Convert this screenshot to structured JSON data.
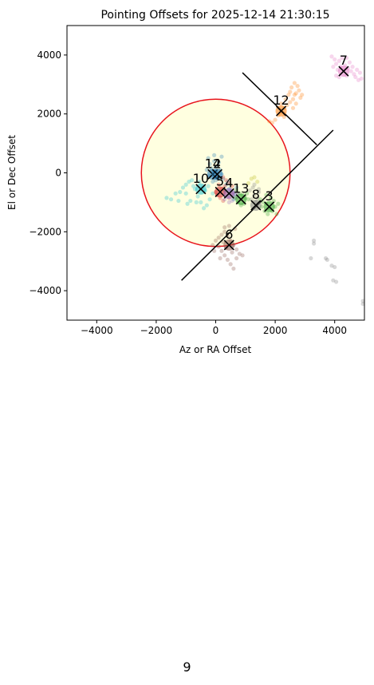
{
  "page": {
    "number": "9"
  },
  "chart_data": {
    "type": "scatter",
    "title": "Pointing Offsets for 2025-12-14 21:30:15",
    "xlabel": "Az or RA Offset",
    "ylabel": "El or Dec Offset",
    "xlim": [
      -5000,
      5000
    ],
    "ylim": [
      -5000,
      5000
    ],
    "xticks": [
      -4000,
      -2000,
      0,
      2000,
      4000
    ],
    "yticks": [
      -4000,
      -2000,
      0,
      2000,
      4000
    ],
    "xtick_labels": [
      "−4000",
      "−2000",
      "0",
      "2000",
      "4000"
    ],
    "ytick_labels": [
      "−4000",
      "−2000",
      "0",
      "2000",
      "4000"
    ],
    "grid": false,
    "circle": {
      "center": [
        0,
        0
      ],
      "radius": 2500,
      "edge_color": "#e8141c",
      "fill_color": "#ffffe0"
    },
    "lines": [
      {
        "from": [
          900,
          3400
        ],
        "to": [
          3400,
          950
        ]
      },
      {
        "from": [
          -1150,
          -3650
        ],
        "to": [
          3950,
          1450
        ]
      }
    ],
    "markers": [
      {
        "label": "7",
        "x": 4300,
        "y": 3450,
        "color": "#e377c2"
      },
      {
        "label": "12",
        "x": 2200,
        "y": 2100,
        "color": "#ff7f0e"
      },
      {
        "label": "14",
        "x": -100,
        "y": -50,
        "color": "#1f77b4"
      },
      {
        "label": "2",
        "x": 50,
        "y": -50,
        "color": "#1f77b4"
      },
      {
        "label": "10",
        "x": -500,
        "y": -550,
        "color": "#17becf"
      },
      {
        "label": "5",
        "x": 150,
        "y": -650,
        "color": "#d62728"
      },
      {
        "label": "4",
        "x": 450,
        "y": -700,
        "color": "#9467bd"
      },
      {
        "label": "13",
        "x": 850,
        "y": -900,
        "color": "#2ca02c"
      },
      {
        "label": "8",
        "x": 1350,
        "y": -1100,
        "color": "#7f7f7f"
      },
      {
        "label": "3",
        "x": 1800,
        "y": -1150,
        "color": "#2ca02c"
      },
      {
        "label": "6",
        "x": 450,
        "y": -2450,
        "color": "#8c564b"
      }
    ],
    "series": [
      {
        "color": "#e377c2",
        "points": [
          [
            3900,
            3950
          ],
          [
            4000,
            3850
          ],
          [
            4050,
            3700
          ],
          [
            4150,
            3800
          ],
          [
            4250,
            3900
          ],
          [
            4350,
            3650
          ],
          [
            4450,
            3550
          ],
          [
            4550,
            3450
          ],
          [
            4650,
            3350
          ],
          [
            4700,
            3250
          ],
          [
            4800,
            3150
          ],
          [
            4900,
            3200
          ],
          [
            4400,
            3300
          ],
          [
            4300,
            3500
          ],
          [
            4500,
            3750
          ],
          [
            4600,
            3600
          ],
          [
            4200,
            3600
          ],
          [
            4100,
            3500
          ],
          [
            3950,
            3600
          ],
          [
            4050,
            3300
          ],
          [
            4750,
            3500
          ],
          [
            4850,
            3400
          ],
          [
            4400,
            3900
          ],
          [
            4150,
            3250
          ]
        ]
      },
      {
        "color": "#ff7f0e",
        "points": [
          [
            1900,
            1700
          ],
          [
            2000,
            1800
          ],
          [
            2100,
            1950
          ],
          [
            2200,
            2050
          ],
          [
            2300,
            2200
          ],
          [
            2400,
            2300
          ],
          [
            2500,
            2400
          ],
          [
            2600,
            2500
          ],
          [
            2700,
            2700
          ],
          [
            2800,
            2800
          ],
          [
            2750,
            2950
          ],
          [
            2650,
            3050
          ],
          [
            2550,
            2900
          ],
          [
            2450,
            2650
          ],
          [
            2350,
            2500
          ],
          [
            2850,
            2550
          ],
          [
            2700,
            2350
          ],
          [
            2600,
            2200
          ],
          [
            2900,
            2650
          ],
          [
            2500,
            2750
          ],
          [
            2300,
            1900
          ],
          [
            1800,
            1750
          ],
          [
            2200,
            2350
          ],
          [
            2650,
            2650
          ]
        ]
      },
      {
        "color": "#1f77b4",
        "points": [
          [
            -250,
            500
          ],
          [
            -200,
            300
          ],
          [
            -150,
            150
          ],
          [
            -50,
            400
          ],
          [
            0,
            200
          ],
          [
            100,
            350
          ],
          [
            -100,
            50
          ],
          [
            50,
            0
          ],
          [
            150,
            100
          ],
          [
            -300,
            100
          ],
          [
            -200,
            -100
          ],
          [
            0,
            -250
          ],
          [
            100,
            -150
          ],
          [
            200,
            -50
          ],
          [
            -100,
            -300
          ],
          [
            250,
            -200
          ],
          [
            350,
            -400
          ],
          [
            450,
            -550
          ],
          [
            550,
            -650
          ],
          [
            650,
            -750
          ],
          [
            700,
            -500
          ],
          [
            400,
            -300
          ],
          [
            300,
            -600
          ],
          [
            600,
            -900
          ],
          [
            -50,
            600
          ],
          [
            200,
            550
          ]
        ]
      },
      {
        "color": "#17becf",
        "points": [
          [
            -1650,
            -850
          ],
          [
            -1500,
            -900
          ],
          [
            -1350,
            -700
          ],
          [
            -1200,
            -650
          ],
          [
            -1100,
            -500
          ],
          [
            -1000,
            -400
          ],
          [
            -900,
            -300
          ],
          [
            -800,
            -250
          ],
          [
            -700,
            -550
          ],
          [
            -600,
            -800
          ],
          [
            -500,
            -1000
          ],
          [
            -400,
            -1200
          ],
          [
            -300,
            -1100
          ],
          [
            -200,
            -900
          ],
          [
            -100,
            -700
          ],
          [
            -350,
            -600
          ],
          [
            -650,
            -1000
          ],
          [
            -850,
            -950
          ],
          [
            -1000,
            -700
          ],
          [
            -750,
            -450
          ],
          [
            -550,
            -300
          ],
          [
            -450,
            -500
          ],
          [
            -250,
            -450
          ],
          [
            -950,
            -1050
          ],
          [
            -1250,
            -950
          ]
        ]
      },
      {
        "color": "#d62728",
        "points": [
          [
            250,
            -150
          ],
          [
            350,
            -250
          ],
          [
            450,
            -350
          ],
          [
            550,
            -450
          ],
          [
            300,
            -450
          ],
          [
            200,
            -550
          ],
          [
            100,
            -400
          ],
          [
            50,
            -750
          ],
          [
            150,
            -850
          ],
          [
            350,
            -700
          ],
          [
            450,
            -850
          ],
          [
            250,
            -950
          ],
          [
            0,
            -650
          ],
          [
            550,
            -700
          ]
        ]
      },
      {
        "color": "#9467bd",
        "points": [
          [
            500,
            -600
          ],
          [
            600,
            -750
          ],
          [
            700,
            -850
          ],
          [
            400,
            -800
          ],
          [
            300,
            -900
          ],
          [
            550,
            -950
          ],
          [
            650,
            -650
          ],
          [
            750,
            -700
          ],
          [
            450,
            -1000
          ]
        ]
      },
      {
        "color": "#2ca02c",
        "points": [
          [
            700,
            -600
          ],
          [
            800,
            -700
          ],
          [
            900,
            -750
          ],
          [
            1000,
            -850
          ],
          [
            1100,
            -900
          ],
          [
            750,
            -1000
          ],
          [
            850,
            -1100
          ],
          [
            950,
            -1050
          ],
          [
            1050,
            -700
          ],
          [
            650,
            -850
          ],
          [
            1500,
            -900
          ],
          [
            1600,
            -1000
          ],
          [
            1700,
            -1050
          ],
          [
            1800,
            -1200
          ],
          [
            1900,
            -1300
          ],
          [
            2000,
            -1150
          ],
          [
            2100,
            -1050
          ],
          [
            1650,
            -1300
          ],
          [
            1750,
            -1400
          ],
          [
            1850,
            -850
          ],
          [
            1950,
            -950
          ],
          [
            1550,
            -1150
          ],
          [
            2050,
            -1400
          ],
          [
            1700,
            -750
          ]
        ]
      },
      {
        "color": "#7f7f7f",
        "points": [
          [
            1150,
            -600
          ],
          [
            1250,
            -500
          ],
          [
            1300,
            -750
          ],
          [
            1400,
            -850
          ],
          [
            1450,
            -650
          ],
          [
            1350,
            -1000
          ],
          [
            1200,
            -900
          ],
          [
            1450,
            -550
          ],
          [
            1300,
            -400
          ],
          [
            3300,
            -2300
          ],
          [
            3300,
            -2400
          ],
          [
            3700,
            -2900
          ],
          [
            3750,
            -2950
          ],
          [
            3900,
            -3150
          ],
          [
            4000,
            -3200
          ],
          [
            3950,
            -3650
          ],
          [
            4050,
            -3700
          ],
          [
            4950,
            -4350
          ],
          [
            4950,
            -4450
          ],
          [
            3200,
            -2900
          ]
        ]
      },
      {
        "color": "#8c564b",
        "points": [
          [
            0,
            -2300
          ],
          [
            100,
            -2200
          ],
          [
            200,
            -2100
          ],
          [
            300,
            -2000
          ],
          [
            400,
            -2150
          ],
          [
            500,
            -2300
          ],
          [
            600,
            -2450
          ],
          [
            700,
            -2600
          ],
          [
            800,
            -2750
          ],
          [
            900,
            -2800
          ],
          [
            100,
            -2500
          ],
          [
            200,
            -2650
          ],
          [
            300,
            -2800
          ],
          [
            400,
            -2950
          ],
          [
            500,
            -3100
          ],
          [
            600,
            -3250
          ],
          [
            700,
            -2900
          ],
          [
            250,
            -2350
          ],
          [
            -100,
            -2450
          ],
          [
            -50,
            -2650
          ],
          [
            150,
            -2900
          ],
          [
            350,
            -2550
          ],
          [
            550,
            -2700
          ],
          [
            650,
            -1900
          ],
          [
            450,
            -1800
          ],
          [
            300,
            -1850
          ]
        ]
      },
      {
        "color": "#bcbd22",
        "points": [
          [
            1200,
            -200
          ],
          [
            1400,
            -300
          ],
          [
            1300,
            -150
          ],
          [
            1100,
            -350
          ]
        ]
      }
    ]
  }
}
